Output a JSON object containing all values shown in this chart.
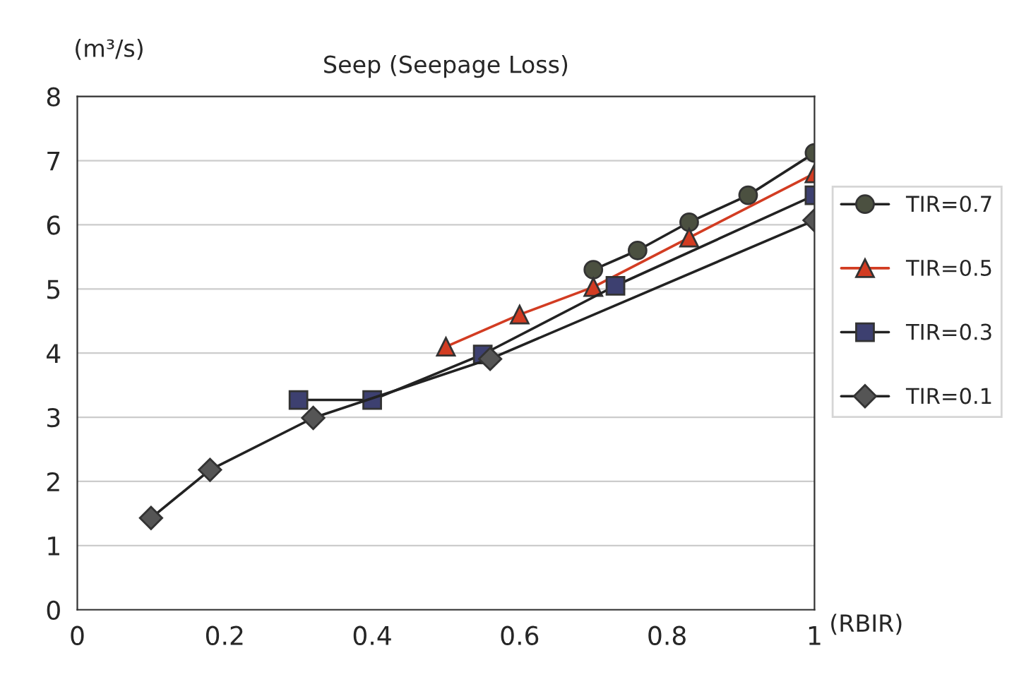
{
  "chart_data": {
    "type": "line",
    "title": "Seep (Seepage Loss)",
    "xlabel": "(RBIR)",
    "ylabel": "(m³/s)",
    "xlim": [
      0,
      1
    ],
    "xticks": [
      0,
      0.2,
      0.4,
      0.6,
      0.8,
      1
    ],
    "ylim": [
      0,
      8
    ],
    "yticks": [
      0,
      1,
      2,
      3,
      4,
      5,
      6,
      7,
      8
    ],
    "grid": "y",
    "legend": "right",
    "line_style": "solid",
    "series": [
      {
        "name": "TIR=0.7",
        "color": "#4b5040",
        "marker": "circle",
        "x": [
          0.7,
          0.76,
          0.83,
          0.91,
          1.0
        ],
        "values": [
          5.3,
          5.6,
          6.04,
          6.46,
          7.12
        ]
      },
      {
        "name": "TIR=0.5",
        "color": "#d23c22",
        "marker": "triangle",
        "x": [
          0.5,
          0.6,
          0.7,
          0.83,
          1.0
        ],
        "values": [
          4.1,
          4.6,
          5.03,
          5.8,
          6.8
        ]
      },
      {
        "name": "TIR=0.3",
        "color": "#3d4070",
        "marker": "square",
        "x": [
          0.3,
          0.4,
          0.55,
          0.73,
          1.0
        ],
        "values": [
          3.27,
          3.27,
          3.98,
          5.05,
          6.46
        ]
      },
      {
        "name": "TIR=0.1",
        "color": "#555555",
        "marker": "diamond",
        "x": [
          0.1,
          0.18,
          0.32,
          0.56,
          1.0
        ],
        "values": [
          1.43,
          2.18,
          2.99,
          3.91,
          6.07
        ]
      }
    ]
  }
}
